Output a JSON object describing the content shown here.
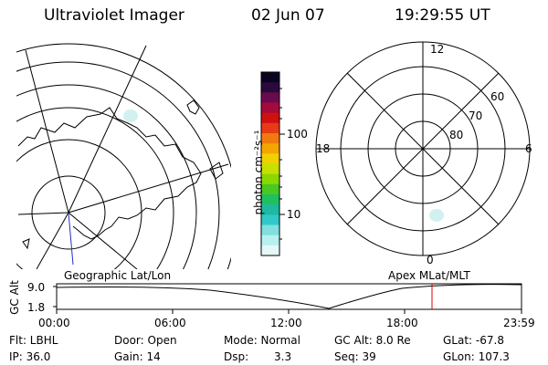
{
  "header": {
    "title": "Ultraviolet Imager",
    "date": "02 Jun 07",
    "time": "19:29:55 UT"
  },
  "colorbar": {
    "unit_label": "photon cm⁻²s⁻¹",
    "ticks": [
      "100",
      "10"
    ],
    "colors": [
      "#0b0320",
      "#2a0a3d",
      "#6b0b4f",
      "#a50a3c",
      "#d01010",
      "#e83a18",
      "#f07a10",
      "#f4a500",
      "#f0d000",
      "#c8e000",
      "#8ad800",
      "#48c820",
      "#20c060",
      "#20b8a0",
      "#30c8c8",
      "#80e0e0",
      "#b8f0f0",
      "#e4f8f8"
    ]
  },
  "geo_map": {
    "label": "Geographic Lat/Lon"
  },
  "polar_plot": {
    "label": "Apex MLat/MLT",
    "mlt_labels": {
      "top": "12",
      "left": "18",
      "right": "6",
      "bottom": "0"
    },
    "lat_labels": [
      "60",
      "70",
      "80"
    ]
  },
  "altitude_plot": {
    "ylabel": "GC Alt",
    "yticks": [
      "9.0",
      "1.8"
    ],
    "xticks": [
      "00:00",
      "06:00",
      "12:00",
      "18:00",
      "23:59"
    ],
    "marker_color": "#e00000"
  },
  "info": {
    "flt": "Flt: LBHL",
    "ip": "IP: 36.0",
    "door": "Door: Open",
    "gain": "Gain: 14",
    "mode": "Mode: Normal",
    "dsp": "Dsp:",
    "dsp_value": "3.3",
    "gc_alt": "GC Alt: 8.0 Re",
    "seq": "Seq: 39",
    "glat": "GLat: -67.8",
    "glon": "GLon: 107.3"
  }
}
